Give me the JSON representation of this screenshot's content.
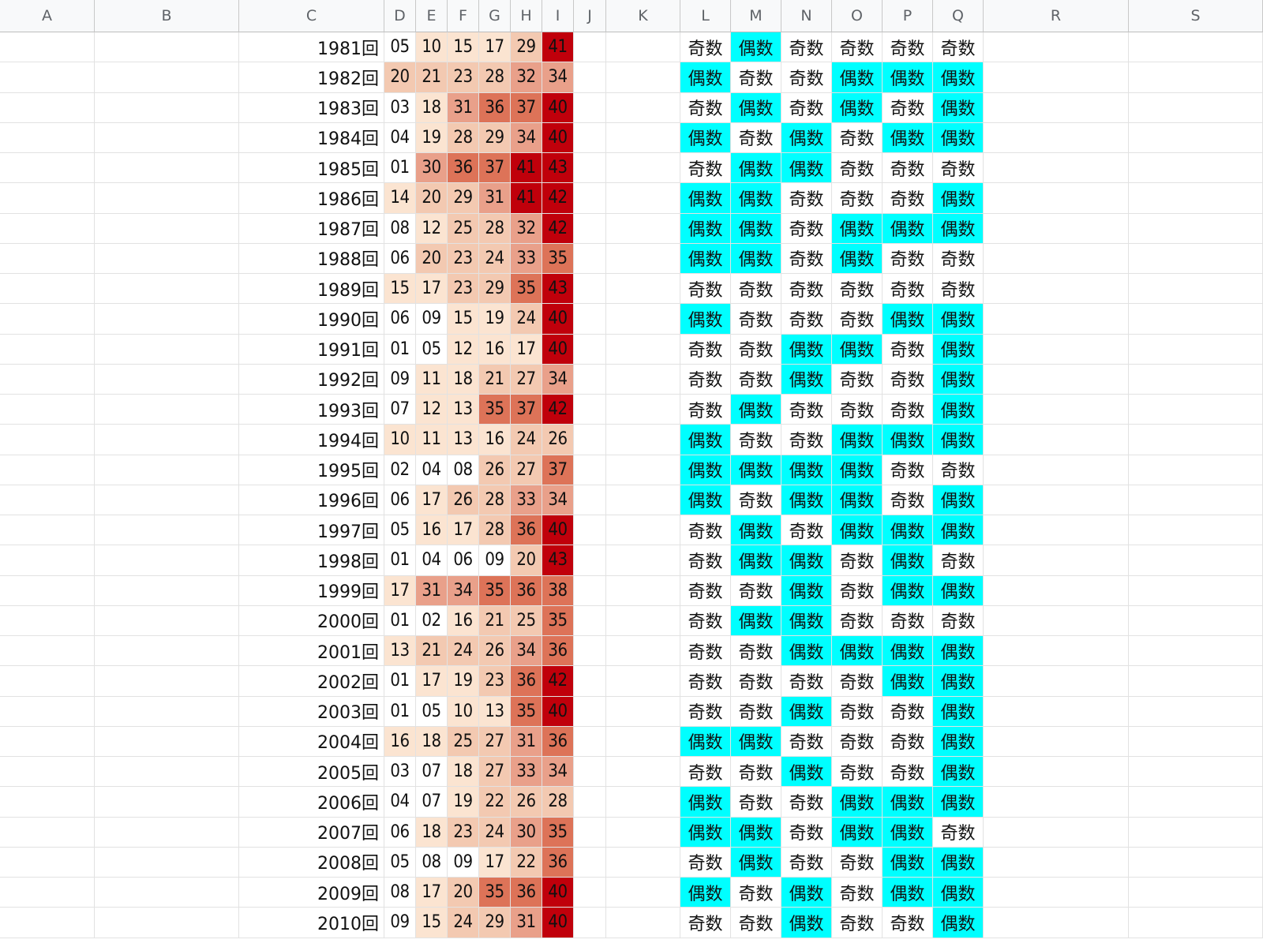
{
  "columns": [
    "A",
    "B",
    "C",
    "D",
    "E",
    "F",
    "G",
    "H",
    "I",
    "J",
    "K",
    "L",
    "M",
    "N",
    "O",
    "P",
    "Q",
    "R",
    "S"
  ],
  "parity_labels": {
    "odd": "奇数",
    "even": "偶数"
  },
  "colors": {
    "even_highlight": "#00ffff",
    "heat_levels": [
      "#ffffff",
      "#fbe4d1",
      "#f3c9b1",
      "#e9a08a",
      "#dd7358",
      "#c0000b"
    ]
  },
  "rows": [
    {
      "draw": "1981回",
      "numbers": [
        "05",
        "10",
        "15",
        "17",
        "29",
        "41"
      ],
      "parity": [
        "奇数",
        "偶数",
        "奇数",
        "奇数",
        "奇数",
        "奇数"
      ]
    },
    {
      "draw": "1982回",
      "numbers": [
        "20",
        "21",
        "23",
        "28",
        "32",
        "34"
      ],
      "parity": [
        "偶数",
        "奇数",
        "奇数",
        "偶数",
        "偶数",
        "偶数"
      ]
    },
    {
      "draw": "1983回",
      "numbers": [
        "03",
        "18",
        "31",
        "36",
        "37",
        "40"
      ],
      "parity": [
        "奇数",
        "偶数",
        "奇数",
        "偶数",
        "奇数",
        "偶数"
      ]
    },
    {
      "draw": "1984回",
      "numbers": [
        "04",
        "19",
        "28",
        "29",
        "34",
        "40"
      ],
      "parity": [
        "偶数",
        "奇数",
        "偶数",
        "奇数",
        "偶数",
        "偶数"
      ]
    },
    {
      "draw": "1985回",
      "numbers": [
        "01",
        "30",
        "36",
        "37",
        "41",
        "43"
      ],
      "parity": [
        "奇数",
        "偶数",
        "偶数",
        "奇数",
        "奇数",
        "奇数"
      ]
    },
    {
      "draw": "1986回",
      "numbers": [
        "14",
        "20",
        "29",
        "31",
        "41",
        "42"
      ],
      "parity": [
        "偶数",
        "偶数",
        "奇数",
        "奇数",
        "奇数",
        "偶数"
      ]
    },
    {
      "draw": "1987回",
      "numbers": [
        "08",
        "12",
        "25",
        "28",
        "32",
        "42"
      ],
      "parity": [
        "偶数",
        "偶数",
        "奇数",
        "偶数",
        "偶数",
        "偶数"
      ]
    },
    {
      "draw": "1988回",
      "numbers": [
        "06",
        "20",
        "23",
        "24",
        "33",
        "35"
      ],
      "parity": [
        "偶数",
        "偶数",
        "奇数",
        "偶数",
        "奇数",
        "奇数"
      ]
    },
    {
      "draw": "1989回",
      "numbers": [
        "15",
        "17",
        "23",
        "29",
        "35",
        "43"
      ],
      "parity": [
        "奇数",
        "奇数",
        "奇数",
        "奇数",
        "奇数",
        "奇数"
      ]
    },
    {
      "draw": "1990回",
      "numbers": [
        "06",
        "09",
        "15",
        "19",
        "24",
        "40"
      ],
      "parity": [
        "偶数",
        "奇数",
        "奇数",
        "奇数",
        "偶数",
        "偶数"
      ]
    },
    {
      "draw": "1991回",
      "numbers": [
        "01",
        "05",
        "12",
        "16",
        "17",
        "40"
      ],
      "parity": [
        "奇数",
        "奇数",
        "偶数",
        "偶数",
        "奇数",
        "偶数"
      ]
    },
    {
      "draw": "1992回",
      "numbers": [
        "09",
        "11",
        "18",
        "21",
        "27",
        "34"
      ],
      "parity": [
        "奇数",
        "奇数",
        "偶数",
        "奇数",
        "奇数",
        "偶数"
      ]
    },
    {
      "draw": "1993回",
      "numbers": [
        "07",
        "12",
        "13",
        "35",
        "37",
        "42"
      ],
      "parity": [
        "奇数",
        "偶数",
        "奇数",
        "奇数",
        "奇数",
        "偶数"
      ]
    },
    {
      "draw": "1994回",
      "numbers": [
        "10",
        "11",
        "13",
        "16",
        "24",
        "26"
      ],
      "parity": [
        "偶数",
        "奇数",
        "奇数",
        "偶数",
        "偶数",
        "偶数"
      ]
    },
    {
      "draw": "1995回",
      "numbers": [
        "02",
        "04",
        "08",
        "26",
        "27",
        "37"
      ],
      "parity": [
        "偶数",
        "偶数",
        "偶数",
        "偶数",
        "奇数",
        "奇数"
      ]
    },
    {
      "draw": "1996回",
      "numbers": [
        "06",
        "17",
        "26",
        "28",
        "33",
        "34"
      ],
      "parity": [
        "偶数",
        "奇数",
        "偶数",
        "偶数",
        "奇数",
        "偶数"
      ]
    },
    {
      "draw": "1997回",
      "numbers": [
        "05",
        "16",
        "17",
        "28",
        "36",
        "40"
      ],
      "parity": [
        "奇数",
        "偶数",
        "奇数",
        "偶数",
        "偶数",
        "偶数"
      ]
    },
    {
      "draw": "1998回",
      "numbers": [
        "01",
        "04",
        "06",
        "09",
        "20",
        "43"
      ],
      "parity": [
        "奇数",
        "偶数",
        "偶数",
        "奇数",
        "偶数",
        "奇数"
      ]
    },
    {
      "draw": "1999回",
      "numbers": [
        "17",
        "31",
        "34",
        "35",
        "36",
        "38"
      ],
      "parity": [
        "奇数",
        "奇数",
        "偶数",
        "奇数",
        "偶数",
        "偶数"
      ]
    },
    {
      "draw": "2000回",
      "numbers": [
        "01",
        "02",
        "16",
        "21",
        "25",
        "35"
      ],
      "parity": [
        "奇数",
        "偶数",
        "偶数",
        "奇数",
        "奇数",
        "奇数"
      ]
    },
    {
      "draw": "2001回",
      "numbers": [
        "13",
        "21",
        "24",
        "26",
        "34",
        "36"
      ],
      "parity": [
        "奇数",
        "奇数",
        "偶数",
        "偶数",
        "偶数",
        "偶数"
      ]
    },
    {
      "draw": "2002回",
      "numbers": [
        "01",
        "17",
        "19",
        "23",
        "36",
        "42"
      ],
      "parity": [
        "奇数",
        "奇数",
        "奇数",
        "奇数",
        "偶数",
        "偶数"
      ]
    },
    {
      "draw": "2003回",
      "numbers": [
        "01",
        "05",
        "10",
        "13",
        "35",
        "40"
      ],
      "parity": [
        "奇数",
        "奇数",
        "偶数",
        "奇数",
        "奇数",
        "偶数"
      ]
    },
    {
      "draw": "2004回",
      "numbers": [
        "16",
        "18",
        "25",
        "27",
        "31",
        "36"
      ],
      "parity": [
        "偶数",
        "偶数",
        "奇数",
        "奇数",
        "奇数",
        "偶数"
      ]
    },
    {
      "draw": "2005回",
      "numbers": [
        "03",
        "07",
        "18",
        "27",
        "33",
        "34"
      ],
      "parity": [
        "奇数",
        "奇数",
        "偶数",
        "奇数",
        "奇数",
        "偶数"
      ]
    },
    {
      "draw": "2006回",
      "numbers": [
        "04",
        "07",
        "19",
        "22",
        "26",
        "28"
      ],
      "parity": [
        "偶数",
        "奇数",
        "奇数",
        "偶数",
        "偶数",
        "偶数"
      ]
    },
    {
      "draw": "2007回",
      "numbers": [
        "06",
        "18",
        "23",
        "24",
        "30",
        "35"
      ],
      "parity": [
        "偶数",
        "偶数",
        "奇数",
        "偶数",
        "偶数",
        "奇数"
      ]
    },
    {
      "draw": "2008回",
      "numbers": [
        "05",
        "08",
        "09",
        "17",
        "22",
        "36"
      ],
      "parity": [
        "奇数",
        "偶数",
        "奇数",
        "奇数",
        "偶数",
        "偶数"
      ]
    },
    {
      "draw": "2009回",
      "numbers": [
        "08",
        "17",
        "20",
        "35",
        "36",
        "40"
      ],
      "parity": [
        "偶数",
        "奇数",
        "偶数",
        "奇数",
        "偶数",
        "偶数"
      ]
    },
    {
      "draw": "2010回",
      "numbers": [
        "09",
        "15",
        "24",
        "29",
        "31",
        "40"
      ],
      "parity": [
        "奇数",
        "奇数",
        "偶数",
        "奇数",
        "奇数",
        "偶数"
      ]
    }
  ]
}
